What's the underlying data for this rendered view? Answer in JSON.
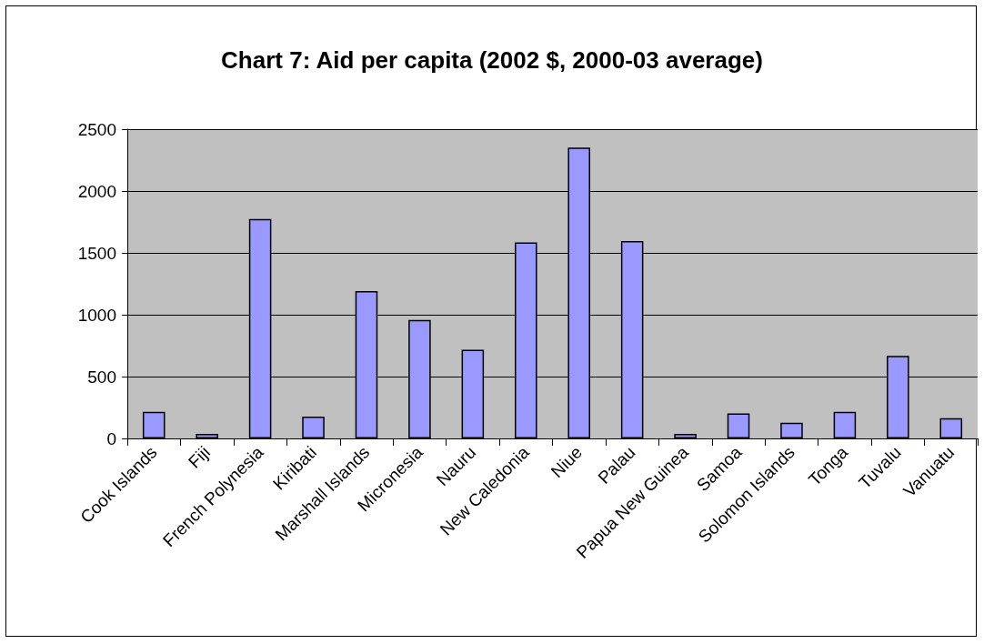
{
  "chart_data": {
    "type": "bar",
    "title": "Chart 7: Aid per capita (2002 $, 2000-03 average)",
    "categories": [
      "Cook Islands",
      "Fiji",
      "French Polynesia",
      "Kiribati",
      "Marshall Islands",
      "Micronesia",
      "Nauru",
      "New Caledonia",
      "Niue",
      "Palau",
      "Papua New Guinea",
      "Samoa",
      "Solomon Islands",
      "Tonga",
      "Tuvalu",
      "Vanuatu"
    ],
    "values": [
      215,
      37,
      1773,
      176,
      1192,
      957,
      717,
      1584,
      2351,
      1596,
      37,
      203,
      127,
      215,
      668,
      164
    ],
    "color": "#9999ff",
    "ylim": [
      0,
      2500
    ],
    "yticks": [
      0,
      500,
      1000,
      1500,
      2000,
      2500
    ],
    "grid": "y"
  }
}
